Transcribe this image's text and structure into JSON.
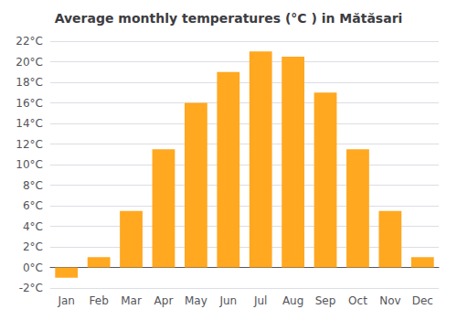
{
  "chart_data": {
    "type": "bar",
    "title": "Average monthly temperatures (°C ) in Mătăsari",
    "categories": [
      "Jan",
      "Feb",
      "Mar",
      "Apr",
      "May",
      "Jun",
      "Jul",
      "Aug",
      "Sep",
      "Oct",
      "Nov",
      "Dec"
    ],
    "values": [
      -1.0,
      1.0,
      5.5,
      11.5,
      16.0,
      19.0,
      21.0,
      20.5,
      17.0,
      11.5,
      5.5,
      1.0
    ],
    "color": "#FFA820",
    "ylim": [
      -2,
      22
    ],
    "yticks": [
      {
        "value": -2,
        "label": "-2°C"
      },
      {
        "value": 0,
        "label": "0°C"
      },
      {
        "value": 2,
        "label": "2°C"
      },
      {
        "value": 4,
        "label": "4°C"
      },
      {
        "value": 6,
        "label": "6°C"
      },
      {
        "value": 8,
        "label": "8°C"
      },
      {
        "value": 10,
        "label": "10°C"
      },
      {
        "value": 12,
        "label": "12°C"
      },
      {
        "value": 14,
        "label": "14°C"
      },
      {
        "value": 16,
        "label": "16°C"
      },
      {
        "value": 18,
        "label": "18°C"
      },
      {
        "value": 20,
        "label": "20°C"
      },
      {
        "value": 22,
        "label": "22°C"
      }
    ],
    "grid": true
  }
}
